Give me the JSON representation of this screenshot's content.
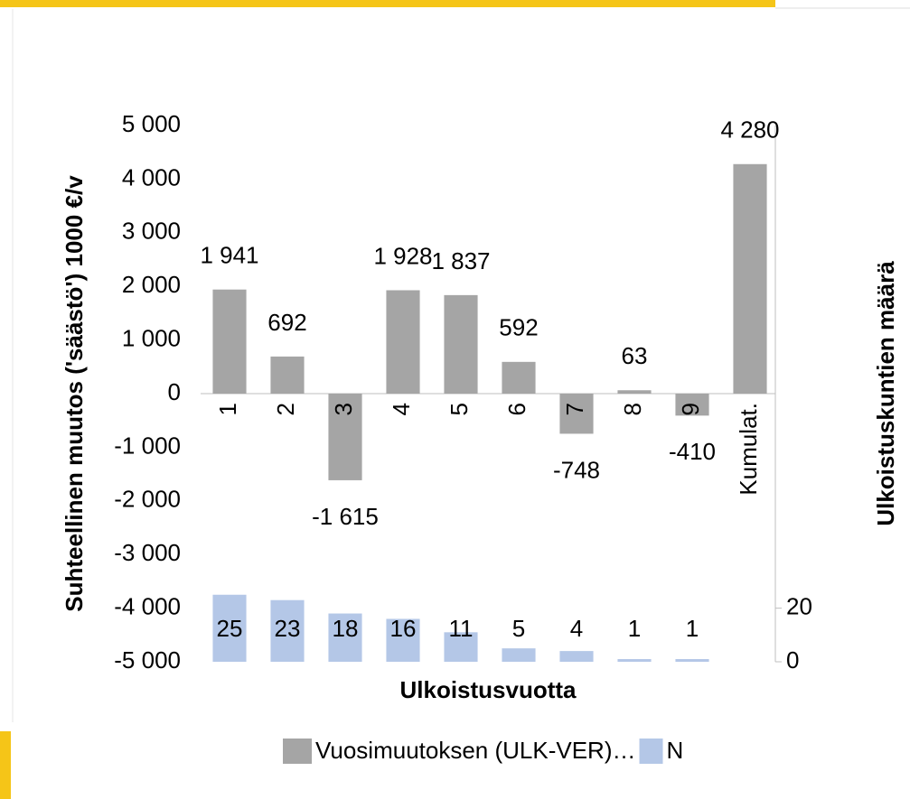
{
  "chart_data": {
    "type": "bar",
    "y_label": "Suhteellinen muutos ('säästö') 1000 €/v",
    "x_label": "Ulkoistusvuotta",
    "y2_label": "Ulkoistuskuntien määrä",
    "categories": [
      "1",
      "2",
      "3",
      "4",
      "5",
      "6",
      "7",
      "8",
      "9",
      "Kumulat."
    ],
    "series": [
      {
        "name": "Vuosimuutoksen (ULK-VER)…",
        "color": "#a5a5a5",
        "values": [
          1941,
          692,
          -1615,
          1928,
          1837,
          592,
          -748,
          63,
          -410,
          4280
        ],
        "value_labels": [
          "1 941",
          "692",
          "-1 615",
          "1 928",
          "1 837",
          "592",
          "-748",
          "63",
          "-410",
          "4 280"
        ]
      },
      {
        "name": "N",
        "color": "#b4c7e7",
        "axis": "y2",
        "values": [
          25,
          23,
          18,
          16,
          11,
          5,
          4,
          1,
          1,
          null
        ]
      }
    ],
    "ylim": [
      -5000,
      5000
    ],
    "yticks": [
      {
        "value": -5000,
        "label": "-5 000"
      },
      {
        "value": -4000,
        "label": "-4 000"
      },
      {
        "value": -3000,
        "label": "-3 000"
      },
      {
        "value": -2000,
        "label": "-2 000"
      },
      {
        "value": -1000,
        "label": "-1 000"
      },
      0,
      {
        "value": 1000,
        "label": "1 000"
      },
      {
        "value": 2000,
        "label": "2 000"
      },
      {
        "value": 3000,
        "label": "3 000"
      },
      {
        "value": 4000,
        "label": "4 000"
      },
      {
        "value": 5000,
        "label": "5 000"
      }
    ],
    "y2lim": [
      0,
      200
    ],
    "y2ticks": [
      0,
      20
    ],
    "grid": false,
    "legend": "bottom"
  }
}
